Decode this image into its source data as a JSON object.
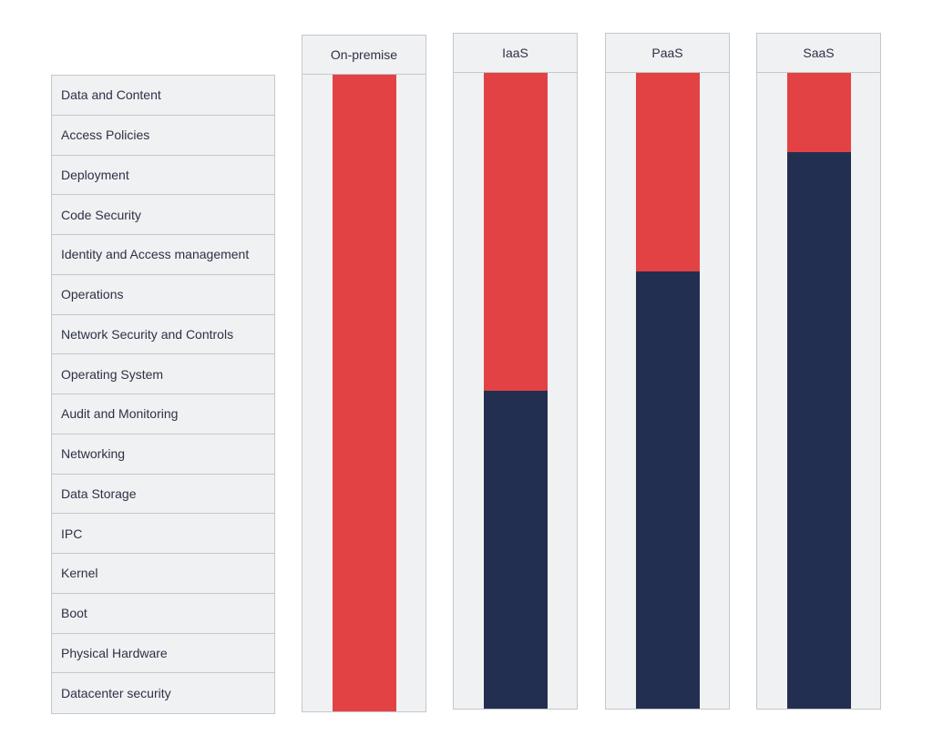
{
  "layers": [
    "Data and Content",
    "Access Policies",
    "Deployment",
    "Code Security",
    "Identity and Access management",
    "Operations",
    "Network Security and Controls",
    "Operating System",
    "Audit and Monitoring",
    "Networking",
    "Data Storage",
    "IPC",
    "Kernel",
    "Boot",
    "Physical Hardware",
    "Datacenter security"
  ],
  "models": [
    {
      "label": "On-premise",
      "customer_layers": 16
    },
    {
      "label": "IaaS",
      "customer_layers": 8
    },
    {
      "label": "PaaS",
      "customer_layers": 5
    },
    {
      "label": "SaaS",
      "customer_layers": 2
    }
  ],
  "colors": {
    "customer": "#e34245",
    "provider": "#232f50",
    "panel": "#f0f1f3",
    "border": "#c5c7cb"
  }
}
